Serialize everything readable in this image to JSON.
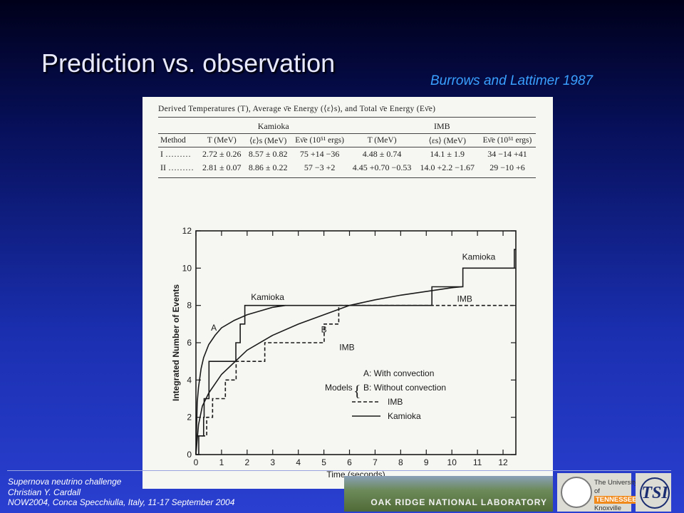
{
  "slide": {
    "title": "Prediction vs. observation",
    "credit": "Burrows and Lattimer 1987"
  },
  "table": {
    "caption": "Derived Temperatures (T), Average ν̄e Energy (⟨ε⟩s), and Total ν̄e Energy (Eν̄e)",
    "group_headers": [
      "Kamioka",
      "IMB"
    ],
    "columns": [
      "Method",
      "T (MeV)",
      "⟨ε⟩s (MeV)",
      "Eν̄e (10⁵¹ ergs)",
      "T (MeV)",
      "⟨εs⟩ (MeV)",
      "Eν̄e (10⁵¹ ergs)"
    ],
    "rows": [
      [
        "I ………",
        "2.72 ± 0.26",
        "8.57 ± 0.82",
        "75 +14 −36",
        "4.48 ± 0.74",
        "14.1 ± 1.9",
        "34 −14 +41"
      ],
      [
        "II ………",
        "2.81 ± 0.07",
        "8.86 ± 0.22",
        "57 −3 +2",
        "4.45 +0.70 −0.53",
        "14.0 +2.2 −1.67",
        "29 −10 +6"
      ]
    ]
  },
  "chart_data": {
    "type": "line",
    "xlabel": "Time (seconds)",
    "ylabel": "Integrated Number of Events",
    "xlim": [
      0,
      12.5
    ],
    "ylim": [
      0,
      12
    ],
    "xticks": [
      "0",
      "1",
      "2",
      "3",
      "4",
      "5",
      "6",
      "7",
      "8",
      "9",
      "10",
      "11",
      "12"
    ],
    "yticks": [
      "0",
      "2",
      "4",
      "6",
      "8",
      "10",
      "12"
    ],
    "series": [
      {
        "name": "Kamioka",
        "style": "solid",
        "step": true,
        "x": [
          0,
          0.11,
          0.3,
          0.32,
          0.51,
          1.56,
          1.73,
          1.91,
          9.22,
          10.43,
          12.44,
          12.5
        ],
        "y": [
          0,
          1,
          2,
          3,
          5,
          6,
          7,
          8,
          9,
          10,
          11,
          11
        ]
      },
      {
        "name": "IMB",
        "style": "dashed",
        "step": true,
        "x": [
          0,
          0.42,
          0.65,
          1.15,
          1.57,
          2.69,
          5.01,
          5.58,
          12.5
        ],
        "y": [
          1,
          2,
          3,
          4,
          5,
          6,
          7,
          8,
          8
        ]
      },
      {
        "name": "A",
        "style": "solid",
        "step": false,
        "x": [
          0,
          0.05,
          0.1,
          0.2,
          0.3,
          0.5,
          0.75,
          1.0,
          1.5,
          2.0,
          2.5,
          3.0,
          3.5
        ],
        "y": [
          0,
          2.8,
          3.6,
          4.6,
          5.2,
          5.9,
          6.4,
          6.8,
          7.2,
          7.5,
          7.7,
          7.9,
          8.0
        ]
      },
      {
        "name": "B",
        "style": "solid",
        "step": false,
        "x": [
          0,
          0.1,
          0.25,
          0.5,
          1,
          2,
          3,
          4,
          5,
          6,
          7,
          8,
          9,
          10,
          10.4
        ],
        "y": [
          0,
          1.6,
          2.6,
          3.3,
          4.3,
          5.6,
          6.4,
          7.0,
          7.5,
          8.0,
          8.3,
          8.55,
          8.75,
          8.95,
          9.0
        ]
      }
    ],
    "annotations": [
      {
        "text": "Kamioka",
        "x": 2.8,
        "y": 8.3
      },
      {
        "text": "A",
        "x": 0.7,
        "y": 6.65
      },
      {
        "text": "B",
        "x": 5.0,
        "y": 6.55
      },
      {
        "text": "IMB",
        "x": 5.9,
        "y": 5.6
      },
      {
        "text": "IMB",
        "x": 10.5,
        "y": 8.2
      },
      {
        "text": "Kamioka",
        "x": 11.05,
        "y": 10.45
      }
    ],
    "legend": {
      "title": "Models",
      "position": "lower-right",
      "items": [
        {
          "label": "A: With convection",
          "style": "none"
        },
        {
          "label": "B: Without convection",
          "style": "none"
        },
        {
          "label": "IMB",
          "style": "dashed"
        },
        {
          "label": "Kamioka",
          "style": "solid"
        }
      ]
    }
  },
  "footer": {
    "line1": "Supernova neutrino challenge",
    "line2": "Christian Y. Cardall",
    "line3": "NOW2004, Conca Specchiulla, Italy, 11-17 September 2004"
  },
  "logos": {
    "ornl": "OAK RIDGE NATIONAL LABORATORY",
    "ut_line1": "The University of",
    "ut_line2": "TENNESSEE",
    "ut_line3": "Knoxville",
    "tsi": "TSI"
  }
}
